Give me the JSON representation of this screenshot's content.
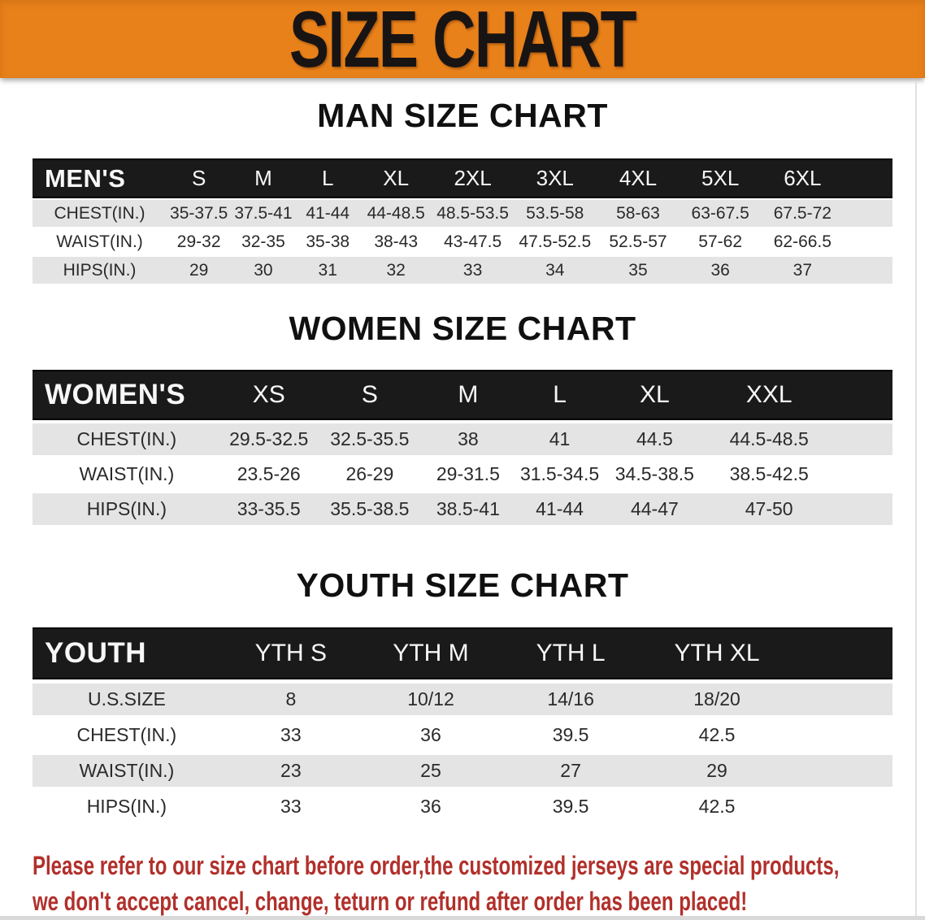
{
  "banner": {
    "title": "SIZE CHART"
  },
  "colors": {
    "banner_bg": "#E8811A",
    "header_row_bg": "#1B1A1A",
    "alt_row_bg": "#E4E4E4",
    "footer_text": "#B1302B"
  },
  "sections": [
    {
      "heading": "MAN SIZE CHART",
      "table": {
        "corner_label": "MEN'S",
        "columns": [
          "S",
          "M",
          "L",
          "XL",
          "2XL",
          "3XL",
          "4XL",
          "5XL",
          "6XL"
        ],
        "rows": [
          {
            "label": "CHEST(IN.)",
            "values": [
              "35-37.5",
              "37.5-41",
              "41-44",
              "44-48.5",
              "48.5-53.5",
              "53.5-58",
              "58-63",
              "63-67.5",
              "67.5-72"
            ]
          },
          {
            "label": "WAIST(IN.)",
            "values": [
              "29-32",
              "32-35",
              "35-38",
              "38-43",
              "43-47.5",
              "47.5-52.5",
              "52.5-57",
              "57-62",
              "62-66.5"
            ]
          },
          {
            "label": "HIPS(IN.)",
            "values": [
              "29",
              "30",
              "31",
              "32",
              "33",
              "34",
              "35",
              "36",
              "37"
            ]
          }
        ]
      }
    },
    {
      "heading": "WOMEN SIZE CHART",
      "table": {
        "corner_label": "WOMEN'S",
        "columns": [
          "XS",
          "S",
          "M",
          "L",
          "XL",
          "XXL"
        ],
        "rows": [
          {
            "label": "CHEST(IN.)",
            "values": [
              "29.5-32.5",
              "32.5-35.5",
              "38",
              "41",
              "44.5",
              "44.5-48.5"
            ]
          },
          {
            "label": "WAIST(IN.)",
            "values": [
              "23.5-26",
              "26-29",
              "29-31.5",
              "31.5-34.5",
              "34.5-38.5",
              "38.5-42.5"
            ]
          },
          {
            "label": "HIPS(IN.)",
            "values": [
              "33-35.5",
              "35.5-38.5",
              "38.5-41",
              "41-44",
              "44-47",
              "47-50"
            ]
          }
        ]
      }
    },
    {
      "heading": "YOUTH SIZE CHART",
      "table": {
        "corner_label": "YOUTH",
        "columns": [
          "YTH S",
          "YTH M",
          "YTH L",
          "YTH XL"
        ],
        "rows": [
          {
            "label": "U.S.SIZE",
            "values": [
              "8",
              "10/12",
              "14/16",
              "18/20"
            ]
          },
          {
            "label": "CHEST(IN.)",
            "values": [
              "33",
              "36",
              "39.5",
              "42.5"
            ]
          },
          {
            "label": "WAIST(IN.)",
            "values": [
              "23",
              "25",
              "27",
              "29"
            ]
          },
          {
            "label": "HIPS(IN.)",
            "values": [
              "33",
              "36",
              "39.5",
              "42.5"
            ]
          }
        ]
      }
    }
  ],
  "footer": {
    "line1": "Please refer to our size chart before order,the customized jerseys are special products,",
    "line2": "we don't accept cancel, change, teturn or refund after order has been placed!"
  }
}
